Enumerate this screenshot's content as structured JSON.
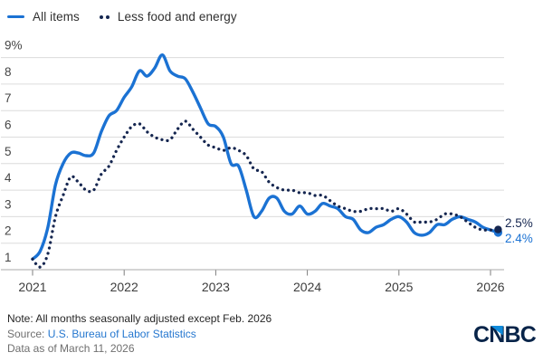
{
  "legend": {
    "items": [
      {
        "label": "All items"
      },
      {
        "label": "Less food and energy"
      }
    ]
  },
  "chart_data": {
    "type": "line",
    "title": "",
    "xlabel": "",
    "ylabel": "",
    "x_start": "2021-01",
    "x_end": "2026-02",
    "x_unit": "month",
    "x_tick_labels": [
      "2021",
      "2022",
      "2023",
      "2024",
      "2025",
      "2026"
    ],
    "y_tick_labels": [
      "9%",
      "8",
      "7",
      "6",
      "5",
      "4",
      "3",
      "2",
      "1"
    ],
    "y_tick_values": [
      9,
      8,
      7,
      6,
      5,
      4,
      3,
      2,
      1
    ],
    "ylim": [
      1,
      9.3
    ],
    "grid": "horizontal",
    "legend_position": "top-left",
    "series": [
      {
        "name": "All items",
        "color": "#1b72d3",
        "style": "solid",
        "end_label": "2.4%",
        "values": [
          1.4,
          1.7,
          2.6,
          4.2,
          5.0,
          5.4,
          5.4,
          5.3,
          5.4,
          6.2,
          6.8,
          7.0,
          7.5,
          7.9,
          8.5,
          8.3,
          8.6,
          9.1,
          8.5,
          8.3,
          8.2,
          7.7,
          7.1,
          6.5,
          6.4,
          6.0,
          5.0,
          4.9,
          4.0,
          3.0,
          3.2,
          3.7,
          3.7,
          3.2,
          3.1,
          3.4,
          3.1,
          3.2,
          3.5,
          3.4,
          3.3,
          3.0,
          2.9,
          2.5,
          2.4,
          2.6,
          2.7,
          2.9,
          3.0,
          2.8,
          2.4,
          2.3,
          2.4,
          2.7,
          2.7,
          2.9,
          3.0,
          2.9,
          2.8,
          2.6,
          2.5,
          2.4
        ]
      },
      {
        "name": "Less food and energy",
        "color": "#152650",
        "style": "dotted",
        "end_label": "2.5%",
        "values": [
          1.4,
          1.1,
          1.6,
          3.0,
          3.8,
          4.5,
          4.3,
          4.0,
          4.0,
          4.6,
          4.9,
          5.5,
          6.0,
          6.4,
          6.5,
          6.2,
          6.0,
          5.9,
          5.9,
          6.3,
          6.6,
          6.3,
          6.0,
          5.7,
          5.6,
          5.5,
          5.6,
          5.5,
          5.3,
          4.8,
          4.7,
          4.3,
          4.1,
          4.0,
          4.0,
          3.9,
          3.9,
          3.8,
          3.8,
          3.6,
          3.4,
          3.3,
          3.2,
          3.2,
          3.3,
          3.3,
          3.3,
          3.2,
          3.3,
          3.1,
          2.8,
          2.8,
          2.8,
          2.9,
          3.1,
          3.1,
          3.0,
          2.8,
          2.6,
          2.5,
          2.5,
          2.5
        ]
      }
    ]
  },
  "footer": {
    "note": "Note: All months seasonally adjusted except Feb. 2026",
    "source_prefix": "Source:",
    "source_link": "U.S. Bureau of Labor Statistics",
    "data_as_of": "Data as of March 11, 2026"
  },
  "logo": {
    "text_c": "C",
    "text_n": "N",
    "text_bc": "BC"
  },
  "colors": {
    "accent_blue": "#1b72d3",
    "navy": "#152650",
    "link_blue": "#2577cf",
    "gridline": "#dcdcdc",
    "axis_text": "#454545"
  }
}
